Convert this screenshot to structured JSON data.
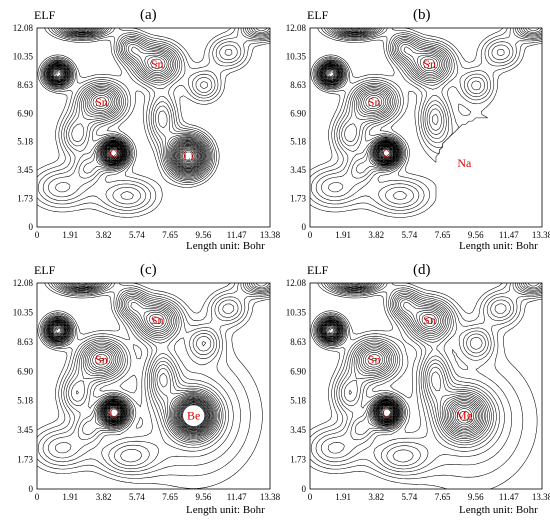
{
  "panels": [
    {
      "id": "a",
      "panel_label": "(a)",
      "title": "ELF",
      "xlabel": "Length unit: Bohr",
      "x_ticks": [
        "0",
        "1.91",
        "3.82",
        "5.74",
        "7.65",
        "9.56",
        "11.47",
        "13.38"
      ],
      "y_ticks": [
        "0",
        "1.73",
        "3.45",
        "5.18",
        "6.90",
        "8.63",
        "10.35",
        "12.08"
      ],
      "atoms": [
        {
          "label": "Sn",
          "x": 6.9,
          "y": 9.9
        },
        {
          "label": "Sn",
          "x": 3.7,
          "y": 7.6
        },
        {
          "label": "C",
          "x": 4.4,
          "y": 4.5
        },
        {
          "label": "Li",
          "x": 8.7,
          "y": 4.3
        }
      ]
    },
    {
      "id": "b",
      "panel_label": "(b)",
      "title": "ELF",
      "xlabel": "Length unit: Bohr",
      "x_ticks": [
        "0",
        "1.91",
        "3.82",
        "5.74",
        "7.65",
        "9.56",
        "11.47",
        "13.38"
      ],
      "y_ticks": [
        "0",
        "1.73",
        "3.45",
        "5.18",
        "6.90",
        "8.63",
        "10.35",
        "12.08"
      ],
      "atoms": [
        {
          "label": "Sn",
          "x": 6.9,
          "y": 9.9
        },
        {
          "label": "Sn",
          "x": 3.7,
          "y": 7.6
        },
        {
          "label": "C",
          "x": 4.4,
          "y": 4.5
        },
        {
          "label": "Na",
          "x": 8.9,
          "y": 3.9
        }
      ]
    },
    {
      "id": "c",
      "panel_label": "(c)",
      "title": "ELF",
      "xlabel": "Length unit: Bohr",
      "x_ticks": [
        "0",
        "1.91",
        "3.82",
        "5.74",
        "7.65",
        "9.56",
        "11.47",
        "13.38"
      ],
      "y_ticks": [
        "0",
        "1.73",
        "3.45",
        "5.18",
        "6.90",
        "8.63",
        "10.35",
        "12.08"
      ],
      "atoms": [
        {
          "label": "Sn",
          "x": 6.9,
          "y": 9.9
        },
        {
          "label": "Sn",
          "x": 3.7,
          "y": 7.6
        },
        {
          "label": "C",
          "x": 4.4,
          "y": 4.5
        },
        {
          "label": "Be",
          "x": 9.0,
          "y": 4.3
        }
      ]
    },
    {
      "id": "d",
      "panel_label": "(d)",
      "title": "ELF",
      "xlabel": "Length unit: Bohr",
      "x_ticks": [
        "0",
        "1.91",
        "3.82",
        "5.74",
        "7.65",
        "9.56",
        "11.47",
        "13.38"
      ],
      "y_ticks": [
        "0",
        "1.73",
        "3.45",
        "5.18",
        "6.90",
        "8.63",
        "10.35",
        "12.08"
      ],
      "atoms": [
        {
          "label": "Sn",
          "x": 6.9,
          "y": 9.9
        },
        {
          "label": "Sn",
          "x": 3.7,
          "y": 7.6
        },
        {
          "label": "C",
          "x": 4.4,
          "y": 4.5
        },
        {
          "label": "Mg",
          "x": 8.9,
          "y": 4.3
        }
      ]
    }
  ],
  "colors": {
    "atom_label": "#e00000",
    "contour": "#000000"
  }
}
